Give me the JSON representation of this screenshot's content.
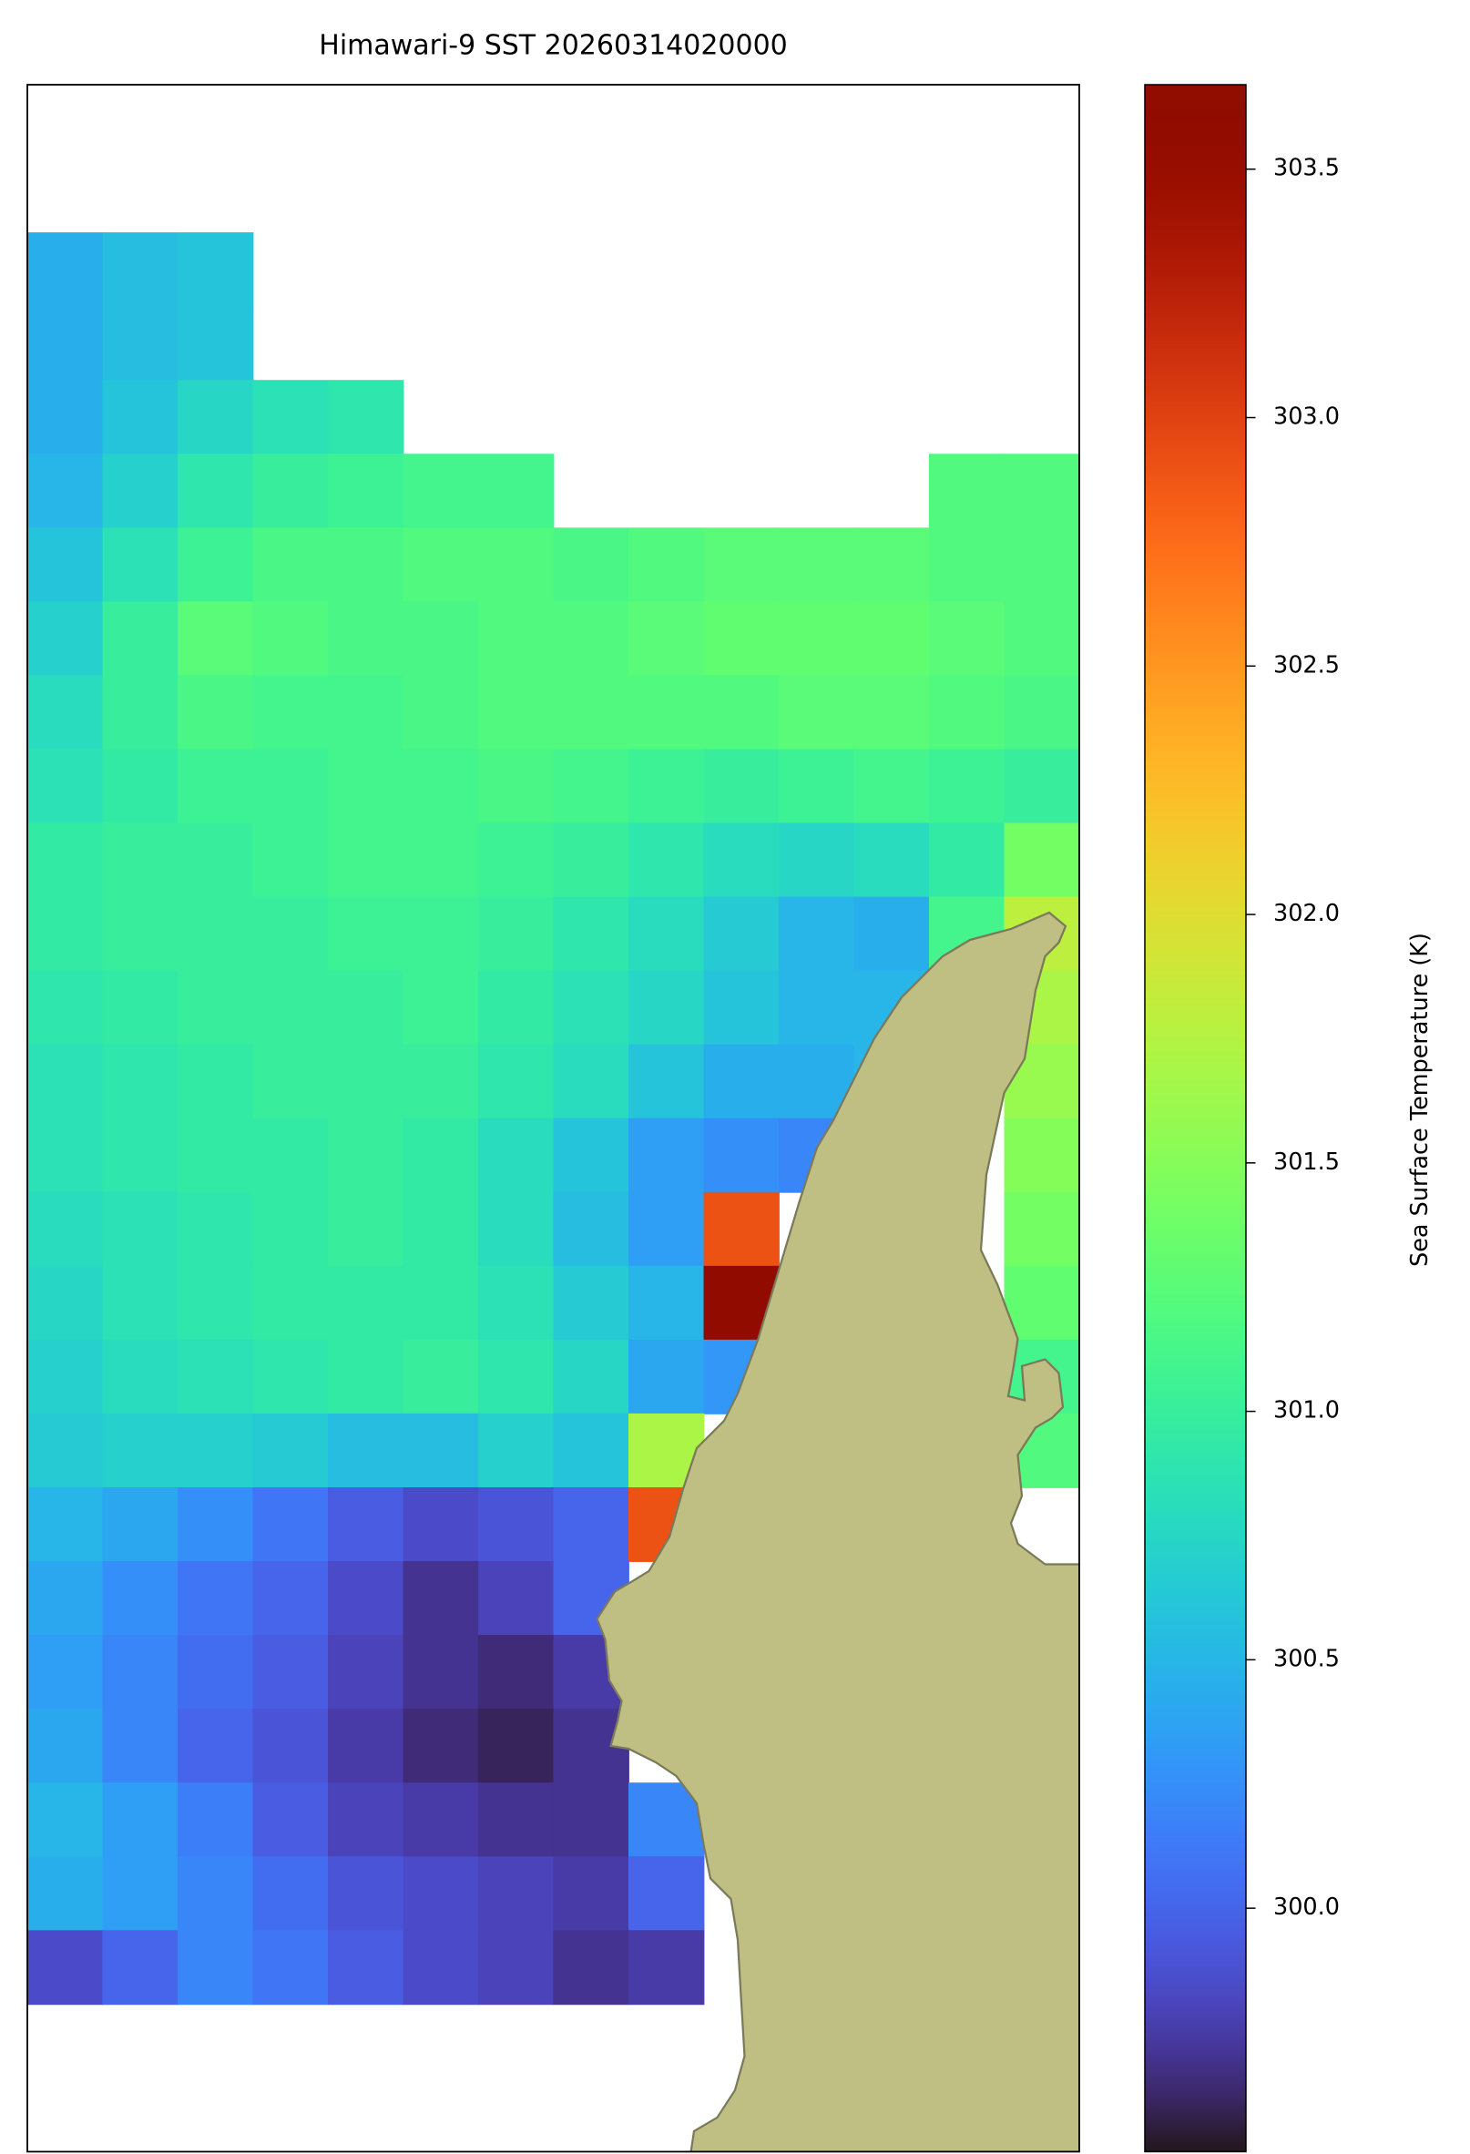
{
  "chart_data": {
    "type": "heatmap",
    "title": "Himawari-9 SST 20260314020000",
    "colorbar_label": "Sea Surface Temperature (K)",
    "colormap": "turbo",
    "clim": [
      299.51,
      303.67
    ],
    "cticks": [
      {
        "value": 300,
        "label": "300.0"
      },
      300.5,
      {
        "value": 301,
        "label": "301.0"
      },
      301.5,
      {
        "value": 302,
        "label": "302.0"
      },
      302.5,
      {
        "value": 303,
        "label": "303.0"
      },
      303.5
    ],
    "land_color": "#bfbf84",
    "values": [
      [
        null,
        null,
        null,
        null,
        null,
        null,
        null,
        null,
        null,
        null,
        null,
        null,
        null,
        null
      ],
      [
        null,
        null,
        null,
        null,
        null,
        null,
        null,
        null,
        null,
        null,
        null,
        null,
        null,
        null
      ],
      [
        300.45,
        300.55,
        300.6,
        null,
        null,
        null,
        null,
        null,
        null,
        null,
        null,
        null,
        null,
        null
      ],
      [
        300.45,
        300.55,
        300.6,
        null,
        null,
        null,
        null,
        null,
        null,
        null,
        null,
        null,
        null,
        null
      ],
      [
        300.45,
        300.6,
        300.75,
        300.85,
        300.9,
        null,
        null,
        null,
        null,
        null,
        null,
        null,
        null,
        null
      ],
      [
        300.5,
        300.7,
        300.9,
        301.0,
        301.05,
        301.1,
        301.1,
        null,
        null,
        null,
        null,
        null,
        301.2,
        301.2
      ],
      [
        300.6,
        300.85,
        301.05,
        301.15,
        301.15,
        301.2,
        301.2,
        301.15,
        301.2,
        301.25,
        301.25,
        301.25,
        301.2,
        301.2
      ],
      [
        300.7,
        301.0,
        301.25,
        301.2,
        301.15,
        301.15,
        301.2,
        301.2,
        301.25,
        301.3,
        301.3,
        301.3,
        301.25,
        301.2
      ],
      [
        300.8,
        301.0,
        301.15,
        301.1,
        301.1,
        301.15,
        301.2,
        301.2,
        301.2,
        301.2,
        301.25,
        301.25,
        301.2,
        301.15
      ],
      [
        300.85,
        300.95,
        301.05,
        301.05,
        301.1,
        301.1,
        301.15,
        301.1,
        301.05,
        301.0,
        301.05,
        301.1,
        301.05,
        301.0
      ],
      [
        300.95,
        301.0,
        301.0,
        301.05,
        301.1,
        301.1,
        301.05,
        301.0,
        300.9,
        300.8,
        300.75,
        300.8,
        300.95,
        301.4
      ],
      [
        300.95,
        301.0,
        301.0,
        301.0,
        301.05,
        301.05,
        301.0,
        300.9,
        300.8,
        300.65,
        300.5,
        300.45,
        301.1,
        301.8
      ],
      [
        300.9,
        300.95,
        301.0,
        301.0,
        301.0,
        301.05,
        300.95,
        300.85,
        300.75,
        300.6,
        300.5,
        300.5,
        300.6,
        301.7
      ],
      [
        300.85,
        300.9,
        300.95,
        301.0,
        301.0,
        301.0,
        300.9,
        300.8,
        300.6,
        300.45,
        300.45,
        300.5,
        null,
        301.6
      ],
      [
        300.85,
        300.9,
        300.95,
        300.95,
        301.0,
        300.95,
        300.8,
        300.6,
        300.35,
        300.25,
        300.2,
        null,
        null,
        301.5
      ],
      [
        300.8,
        300.85,
        300.9,
        300.95,
        301.0,
        300.95,
        300.8,
        300.55,
        300.35,
        302.9,
        null,
        null,
        null,
        301.4
      ],
      [
        300.75,
        300.85,
        300.9,
        300.95,
        300.95,
        300.95,
        300.85,
        300.65,
        300.5,
        303.6,
        null,
        null,
        null,
        301.3
      ],
      [
        300.7,
        300.8,
        300.85,
        300.9,
        300.95,
        301.0,
        300.9,
        300.75,
        300.4,
        300.3,
        null,
        null,
        null,
        301.1
      ],
      [
        300.65,
        300.7,
        300.7,
        300.65,
        300.55,
        300.55,
        300.7,
        300.6,
        301.7,
        null,
        null,
        null,
        null,
        301.2
      ],
      [
        300.5,
        300.4,
        300.25,
        300.1,
        299.95,
        299.85,
        299.9,
        300.0,
        302.9,
        null,
        null,
        null,
        null,
        null
      ],
      [
        300.4,
        300.25,
        300.1,
        300.0,
        299.85,
        299.7,
        299.8,
        300.0,
        null,
        null,
        null,
        null,
        null,
        null
      ],
      [
        300.35,
        300.2,
        300.05,
        299.95,
        299.8,
        299.7,
        299.65,
        299.75,
        null,
        null,
        null,
        null,
        null,
        null
      ],
      [
        300.4,
        300.2,
        300.0,
        299.9,
        299.75,
        299.65,
        299.6,
        299.7,
        null,
        null,
        null,
        null,
        null,
        null
      ],
      [
        300.5,
        300.35,
        300.15,
        299.95,
        299.8,
        299.75,
        299.7,
        299.7,
        300.2,
        null,
        null,
        null,
        null,
        null
      ],
      [
        300.45,
        300.35,
        300.2,
        300.05,
        299.9,
        299.85,
        299.8,
        299.75,
        300.0,
        null,
        null,
        null,
        null,
        null
      ],
      [
        299.85,
        300.0,
        300.2,
        300.1,
        299.95,
        299.85,
        299.8,
        299.7,
        299.75,
        null,
        null,
        null,
        null,
        null
      ],
      [
        null,
        null,
        null,
        null,
        null,
        null,
        null,
        null,
        null,
        null,
        null,
        null,
        null,
        null
      ],
      [
        null,
        null,
        null,
        null,
        null,
        null,
        null,
        null,
        null,
        null,
        null,
        null,
        null,
        null
      ]
    ]
  }
}
